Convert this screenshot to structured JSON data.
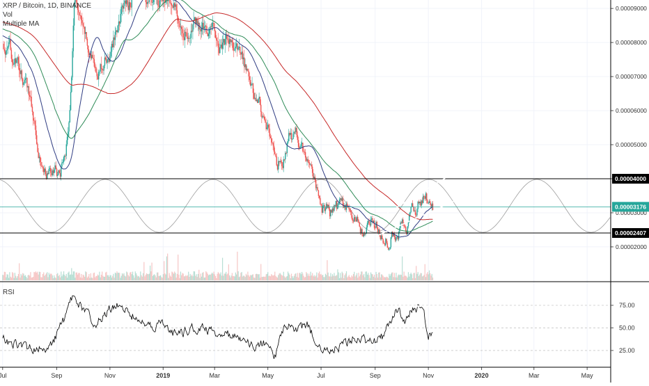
{
  "legend": {
    "symbol": "XRP / Bitcoin, 1D, BINANCE",
    "vol": "Vol",
    "ma": "Multiple MA",
    "rsi": "RSI"
  },
  "colors": {
    "up": "#26a69a",
    "down": "#ef5350",
    "ma_fast": "#2f3c82",
    "ma_mid": "#2e8b57",
    "ma_slow": "#c62828",
    "channel": "#ffffff",
    "horizontal_line": "#000000",
    "current_price_line": "#26a69a",
    "rsi_line": "#000000",
    "sine": "#9e9e9e"
  },
  "chart_data": [
    {
      "type": "candlestick",
      "title": "XRP / Bitcoin, 1D, BINANCE",
      "ylim": [
        1.9e-05,
        9.8e-06
      ],
      "y_ticks": [
        "0.00009000",
        "0.00008000",
        "0.00007000",
        "0.00006000",
        "0.00005000",
        "0.00004000",
        "0.00003000",
        "0.00002000"
      ],
      "x_ticks": [
        "Jul",
        "Sep",
        "Nov",
        "2019",
        "Mar",
        "May",
        "Jul",
        "Sep",
        "Nov",
        "2020",
        "Mar",
        "May"
      ],
      "price_labels": [
        {
          "value": "0.00004000",
          "y": 4e-05,
          "style": "black"
        },
        {
          "value": "0.00003176",
          "y": 3.176e-05,
          "style": "green"
        },
        {
          "value": "0.00002407",
          "y": 2.407e-05,
          "style": "black"
        }
      ],
      "series": [
        {
          "name": "",
          "role": "price-path",
          "points": [
            [
              "2018-07-01",
              7.9e-05
            ],
            [
              "2018-07-15",
              7.4e-05
            ],
            [
              "2018-08-01",
              6.4e-05
            ],
            [
              "2018-08-15",
              4.7e-05
            ],
            [
              "2018-08-25",
              4.2e-05
            ],
            [
              "2018-09-05",
              4.2e-05
            ],
            [
              "2018-09-15",
              5.6e-05
            ],
            [
              "2018-09-22",
              9.5e-05
            ],
            [
              "2018-10-01",
              8e-05
            ],
            [
              "2018-10-15",
              7.2e-05
            ],
            [
              "2018-11-01",
              7.6e-05
            ],
            [
              "2018-11-15",
              9e-05
            ],
            [
              "2018-12-01",
              9.6e-05
            ],
            [
              "2018-12-15",
              9.3e-05
            ],
            [
              "2019-01-01",
              9.15e-05
            ],
            [
              "2019-01-15",
              9e-05
            ],
            [
              "2019-02-01",
              8.6e-05
            ],
            [
              "2019-02-15",
              8.4e-05
            ],
            [
              "2019-03-01",
              8.2e-05
            ],
            [
              "2019-03-15",
              8e-05
            ],
            [
              "2019-04-01",
              7.2e-05
            ],
            [
              "2019-04-15",
              6.4e-05
            ],
            [
              "2019-05-01",
              5.6e-05
            ],
            [
              "2019-05-12",
              4.2e-05
            ],
            [
              "2019-05-25",
              5.2e-05
            ],
            [
              "2019-06-05",
              5e-05
            ],
            [
              "2019-06-20",
              4e-05
            ],
            [
              "2019-07-01",
              3.3e-05
            ],
            [
              "2019-07-15",
              2.9e-05
            ],
            [
              "2019-08-01",
              3e-05
            ],
            [
              "2019-08-15",
              2.55e-05
            ],
            [
              "2019-09-01",
              2.6e-05
            ],
            [
              "2019-09-15",
              2.45e-05
            ],
            [
              "2019-10-01",
              2.8e-05
            ],
            [
              "2019-10-10",
              3e-05
            ],
            [
              "2019-10-20",
              3.4e-05
            ],
            [
              "2019-10-28",
              3.8e-05
            ],
            [
              "2019-11-02",
              3.3e-05
            ],
            [
              "2019-11-06",
              3.18e-05
            ]
          ]
        },
        {
          "name": "",
          "role": "moving-average-fast"
        },
        {
          "name": "",
          "role": "moving-average-mid"
        },
        {
          "name": "",
          "role": "moving-average-slow"
        }
      ]
    },
    {
      "type": "line",
      "title": "RSI",
      "ylim": [
        8,
        95
      ],
      "y_ticks": [
        "75.00",
        "50.00",
        "25.00"
      ],
      "series": [
        {
          "name": "",
          "points": [
            [
              "2018-07-01",
              38
            ],
            [
              "2018-07-20",
              30
            ],
            [
              "2018-08-10",
              25
            ],
            [
              "2018-08-25",
              30
            ],
            [
              "2018-09-10",
              60
            ],
            [
              "2018-09-20",
              88
            ],
            [
              "2018-10-01",
              70
            ],
            [
              "2018-10-15",
              55
            ],
            [
              "2018-11-01",
              72
            ],
            [
              "2018-11-15",
              76
            ],
            [
              "2018-12-01",
              60
            ],
            [
              "2018-12-15",
              50
            ],
            [
              "2019-01-01",
              55
            ],
            [
              "2019-01-15",
              42
            ],
            [
              "2019-02-01",
              48
            ],
            [
              "2019-02-15",
              50
            ],
            [
              "2019-03-01",
              44
            ],
            [
              "2019-03-15",
              42
            ],
            [
              "2019-04-01",
              38
            ],
            [
              "2019-04-15",
              30
            ],
            [
              "2019-05-01",
              35
            ],
            [
              "2019-05-10",
              18
            ],
            [
              "2019-05-20",
              55
            ],
            [
              "2019-06-01",
              48
            ],
            [
              "2019-06-15",
              52
            ],
            [
              "2019-06-30",
              30
            ],
            [
              "2019-07-10",
              22
            ],
            [
              "2019-07-25",
              32
            ],
            [
              "2019-08-10",
              40
            ],
            [
              "2019-08-25",
              34
            ],
            [
              "2019-09-10",
              40
            ],
            [
              "2019-09-20",
              62
            ],
            [
              "2019-09-25",
              72
            ],
            [
              "2019-10-05",
              60
            ],
            [
              "2019-10-15",
              70
            ],
            [
              "2019-10-25",
              74
            ],
            [
              "2019-11-01",
              42
            ],
            [
              "2019-11-06",
              44
            ]
          ]
        }
      ],
      "reference_levels": [
        75,
        50,
        25
      ]
    }
  ]
}
